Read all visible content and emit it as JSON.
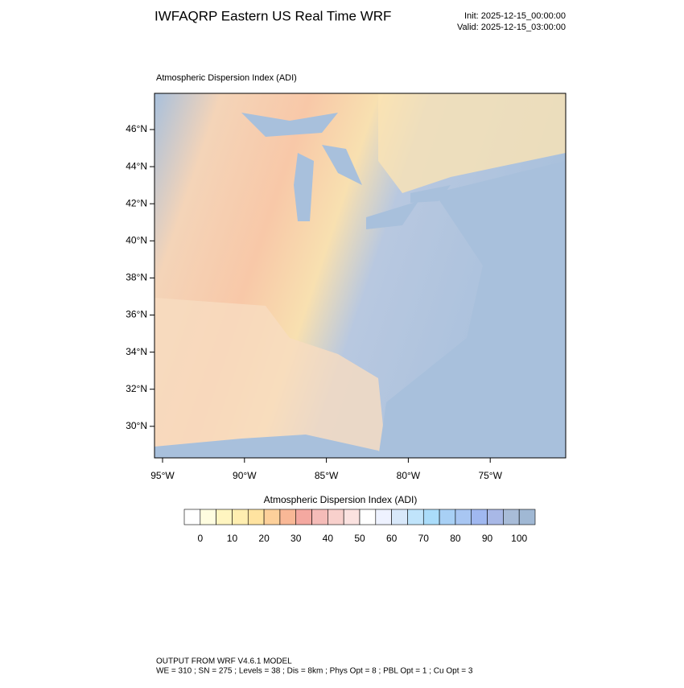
{
  "header": {
    "title": "IWFAQRP Eastern US Real Time WRF",
    "init": "Init: 2025-12-15_00:00:00",
    "valid": "Valid: 2025-12-15_03:00:00"
  },
  "map": {
    "subtitle": "Atmospheric Dispersion Index   (ADI)",
    "lat_labels": [
      "46°N",
      "44°N",
      "42°N",
      "40°N",
      "38°N",
      "36°N",
      "34°N",
      "32°N",
      "30°N"
    ],
    "lon_labels": [
      "95°W",
      "90°W",
      "85°W",
      "80°W",
      "75°W"
    ]
  },
  "colorbar": {
    "title": "Atmospheric Dispersion Index  (ADI)",
    "ticks": [
      0,
      10,
      20,
      30,
      40,
      50,
      60,
      70,
      80,
      90,
      100
    ],
    "colors": [
      "#ffffff",
      "#fffde0",
      "#fff5c0",
      "#ffeeb0",
      "#ffe3a0",
      "#fdd09a",
      "#f9b896",
      "#f4a8a0",
      "#f5bcb8",
      "#f8d0cc",
      "#fbe2e0",
      "#ffffff",
      "#eef2ff",
      "#d8e8fa",
      "#c0e4fb",
      "#aadcfa",
      "#a8d0f5",
      "#a8c6f2",
      "#a0b8f0",
      "#a8b8e6",
      "#a8bcd8",
      "#a0b8d4"
    ]
  },
  "footer": {
    "line1": "OUTPUT FROM WRF V4.6.1 MODEL",
    "line2": "WE = 310 ; SN = 275 ; Levels = 38 ; Dis = 8km ; Phys Opt = 8 ; PBL Opt = 1 ; Cu Opt = 3"
  }
}
